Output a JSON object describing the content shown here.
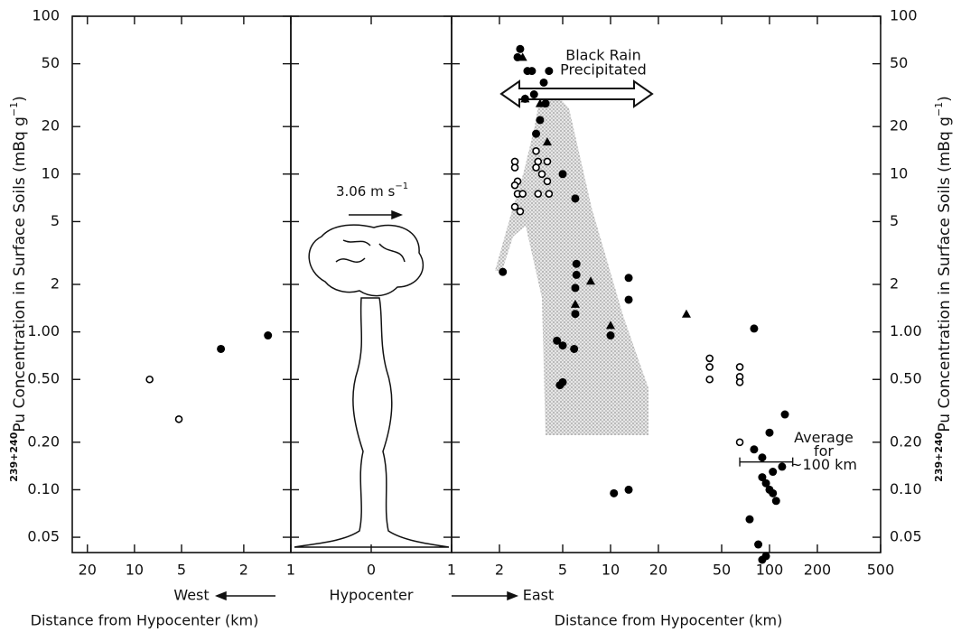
{
  "chart_data": [
    {
      "type": "scatter",
      "log_x": true,
      "log_y": true,
      "xlim": [
        25,
        1
      ],
      "xticks": [
        20,
        10,
        5,
        2
      ],
      "ylim": [
        0.04,
        100
      ],
      "yticks": [
        100,
        50,
        20,
        10,
        5,
        2,
        {
          "value": 1,
          "label": "1.00"
        },
        {
          "value": 0.5,
          "label": "0.50"
        },
        {
          "value": 0.2,
          "label": "0.20"
        },
        {
          "value": 0.1,
          "label": "0.10"
        },
        {
          "value": 0.05,
          "label": "0.05"
        }
      ],
      "ytick_labels": "left",
      "ylabel": [
        "239+240",
        "Pu Concentration in Surface Soils (mBq g",
        "−1",
        ")"
      ],
      "xlabel": "Distance from Hypocenter (km)",
      "direction": "West",
      "series": [
        {
          "marker": "filled",
          "color": "#000000",
          "x": [
            2.8,
            1.4
          ],
          "values": [
            0.78,
            0.95
          ]
        },
        {
          "marker": "open",
          "color": "#000000",
          "x": [
            8,
            5.2
          ],
          "values": [
            0.5,
            0.28
          ]
        }
      ]
    },
    {
      "type": "scatter",
      "log_x": false,
      "log_y": true,
      "xlim": [
        -1,
        1
      ],
      "xticks": [
        {
          "value": -1,
          "label": "1"
        },
        0,
        {
          "value": 1,
          "label": "1"
        }
      ],
      "ylim": [
        0.04,
        100
      ],
      "yticks": [
        100,
        50,
        20,
        10,
        5,
        2,
        1,
        0.5,
        0.2,
        0.1,
        0.05
      ],
      "direction": "Hypocenter",
      "wind_label": [
        "3.06 m s",
        "−1"
      ],
      "series": []
    },
    {
      "type": "scatter",
      "log_x": true,
      "log_y": true,
      "xlim": [
        1,
        500
      ],
      "xticks": [
        2,
        5,
        10,
        20,
        50,
        100,
        200,
        500
      ],
      "ylim": [
        0.04,
        100
      ],
      "yticks": [
        100,
        50,
        20,
        10,
        5,
        2,
        {
          "value": 1,
          "label": "1.00"
        },
        {
          "value": 0.5,
          "label": "0.50"
        },
        {
          "value": 0.2,
          "label": "0.20"
        },
        {
          "value": 0.1,
          "label": "0.10"
        },
        {
          "value": 0.05,
          "label": "0.05"
        }
      ],
      "ytick_labels": "right",
      "ylabel": [
        "239+240",
        "Pu Concentration in Surface Soils (mBq g",
        "−1",
        ")"
      ],
      "xlabel": "Distance from Hypocenter (km)",
      "direction": "East",
      "black_rain": [
        "Black Rain",
        "Precipitated"
      ],
      "average": {
        "text": [
          "Average",
          "for",
          "~100 km"
        ],
        "x": [
          65,
          140
        ],
        "y": 0.15
      },
      "series": [
        {
          "marker": "filled",
          "color": "#000000",
          "x": [
            2.1,
            2.7,
            2.6,
            3.0,
            3.2,
            3.8,
            4.1,
            3.3,
            2.9,
            3.9,
            3.6,
            3.4,
            5.0,
            6.0,
            6.1,
            6.1,
            6.0,
            6.0,
            4.6,
            5.0,
            5.9,
            4.8,
            5.0,
            10.0,
            13.0,
            13.0,
            10.5,
            13.0,
            80,
            75,
            85,
            90,
            95,
            80,
            90,
            100,
            125,
            105,
            120,
            95,
            100,
            105,
            110,
            90
          ],
          "values": [
            2.4,
            62,
            55,
            45,
            45,
            38,
            45,
            32,
            30,
            28,
            22,
            18,
            10,
            7,
            2.7,
            2.3,
            1.9,
            1.3,
            0.88,
            0.82,
            0.78,
            0.46,
            0.48,
            0.95,
            2.2,
            1.6,
            0.095,
            0.1,
            1.05,
            0.065,
            0.045,
            0.036,
            0.038,
            0.18,
            0.16,
            0.23,
            0.3,
            0.13,
            0.14,
            0.11,
            0.1,
            0.095,
            0.085,
            0.12
          ]
        },
        {
          "marker": "open",
          "color": "#000000",
          "x": [
            2.5,
            2.5,
            2.6,
            2.5,
            2.6,
            2.8,
            2.5,
            2.7,
            3.4,
            3.5,
            3.4,
            3.7,
            4.0,
            4.0,
            3.5,
            4.1,
            42,
            42,
            42,
            65,
            65,
            65,
            65
          ],
          "values": [
            12,
            11,
            9,
            8.5,
            7.5,
            7.5,
            6.2,
            5.8,
            14,
            12,
            11,
            10,
            12,
            9,
            7.5,
            7.5,
            0.68,
            0.6,
            0.5,
            0.6,
            0.52,
            0.48,
            0.2
          ]
        },
        {
          "marker": "triangle",
          "color": "#000000",
          "x": [
            2.8,
            2.9,
            3.6,
            4.0,
            6.0,
            7.5,
            10,
            30
          ],
          "values": [
            55,
            30,
            28,
            16,
            1.5,
            2.1,
            1.1,
            1.3
          ]
        }
      ]
    }
  ]
}
